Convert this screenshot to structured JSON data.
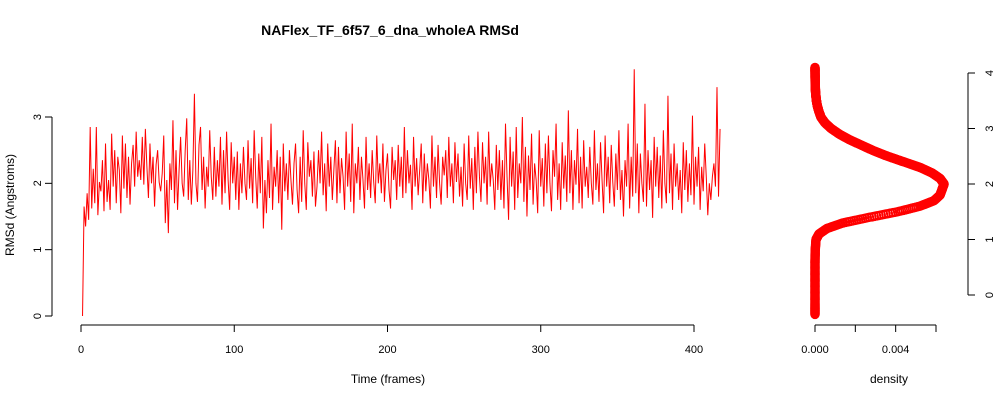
{
  "chart_data": [
    {
      "type": "line",
      "title": "NAFlex_TF_6f57_6_dna_wholeA RMSd",
      "xlabel": "Time (frames)",
      "ylabel": "RMSd (Angstroms)",
      "xlim": [
        0,
        400
      ],
      "ylim": [
        0,
        3.5
      ],
      "x_ticks": [
        0,
        100,
        200,
        300,
        400
      ],
      "y_ticks": [
        0,
        1,
        2,
        3
      ],
      "grid": false,
      "legend": "none",
      "line_color": "#ff0000",
      "series": [
        {
          "x_start": 1,
          "x_step": 1,
          "values": [
            0.0,
            1.65,
            1.35,
            1.85,
            1.45,
            2.85,
            1.62,
            2.22,
            1.7,
            2.85,
            1.52,
            2.02,
            1.88,
            2.35,
            1.58,
            2.6,
            1.72,
            2.05,
            1.6,
            2.75,
            1.95,
            2.5,
            1.7,
            2.4,
            2.2,
            1.55,
            2.72,
            1.92,
            2.6,
            1.78,
            2.4,
            1.68,
            2.3,
            2.58,
            1.95,
            2.78,
            2.1,
            2.35,
            2.05,
            2.7,
            1.98,
            2.82,
            2.25,
            1.78,
            2.6,
            2.0,
            2.4,
            1.65,
            2.28,
            2.5,
            2.02,
            1.88,
            2.15,
            2.72,
            1.4,
            2.05,
            1.25,
            2.3,
            1.9,
            2.95,
            1.7,
            2.5,
            1.6,
            2.2,
            2.7,
            2.0,
            1.8,
            2.5,
            2.98,
            1.75,
            2.35,
            1.68,
            2.2,
            3.35,
            2.0,
            1.72,
            2.58,
            2.85,
            1.9,
            2.4,
            1.62,
            2.25,
            1.95,
            2.8,
            2.1,
            1.75,
            2.55,
            1.8,
            2.35,
            1.95,
            2.7,
            1.68,
            2.5,
            1.85,
            2.78,
            2.05,
            1.6,
            2.62,
            2.0,
            2.4,
            1.75,
            2.48,
            1.6,
            2.3,
            1.85,
            2.55,
            2.0,
            1.75,
            2.65,
            1.92,
            2.38,
            1.7,
            2.8,
            2.1,
            1.62,
            2.45,
            1.85,
            2.7,
            1.32,
            2.05,
            1.55,
            2.35,
            1.78,
            2.9,
            1.6,
            2.25,
            1.95,
            2.5,
            1.7,
            2.4,
            1.3,
            2.6,
            1.88,
            2.3,
            1.75,
            2.5,
            2.05,
            1.68,
            2.3,
            2.6,
            1.9,
            1.55,
            2.4,
            1.72,
            2.8,
            2.0,
            1.6,
            2.62,
            2.1,
            2.35,
            1.8,
            2.48,
            1.65,
            1.95,
            2.5,
            2.0,
            2.78,
            1.82,
            2.3,
            1.58,
            2.6,
            1.95,
            2.4,
            1.75,
            2.2,
            2.65,
            1.7,
            2.55,
            1.85,
            2.38,
            2.1,
            1.6,
            2.78,
            1.95,
            2.45,
            1.72,
            2.9,
            1.55,
            2.3,
            2.0,
            2.55,
            1.75,
            2.4,
            2.05,
            1.62,
            2.7,
            1.9,
            2.3,
            1.78,
            2.5,
            2.02,
            1.7,
            2.72,
            2.0,
            2.3,
            1.85,
            2.6,
            1.72,
            2.2,
            2.45,
            1.9,
            1.62,
            2.55,
            2.05,
            2.35,
            1.75,
            2.58,
            1.95,
            2.4,
            1.78,
            2.85,
            1.85,
            2.5,
            2.0,
            2.28,
            1.6,
            2.7,
            1.95,
            2.38,
            1.82,
            2.2,
            2.6,
            1.7,
            2.45,
            1.88,
            2.3,
            2.05,
            1.62,
            2.72,
            1.95,
            2.4,
            1.78,
            2.58,
            2.0,
            1.68,
            2.4,
            2.12,
            2.5,
            1.78,
            2.7,
            1.95,
            2.3,
            1.7,
            2.62,
            2.02,
            2.45,
            1.8,
            2.25,
            1.65,
            2.6,
            2.0,
            1.75,
            2.72,
            1.92,
            2.38,
            1.6,
            2.55,
            1.85,
            2.78,
            2.1,
            1.72,
            2.62,
            2.0,
            2.4,
            1.68,
            2.78,
            1.95,
            2.3,
            2.05,
            1.6,
            2.58,
            1.9,
            2.5,
            1.75,
            2.35,
            1.62,
            2.9,
            2.1,
            1.45,
            2.7,
            1.95,
            2.48,
            1.6,
            2.85,
            1.78,
            2.3,
            2.0,
            3.0,
            1.72,
            2.55,
            1.5,
            2.42,
            1.9,
            2.75,
            1.68,
            2.3,
            2.05,
            1.55,
            2.8,
            1.95,
            2.38,
            1.65,
            2.6,
            1.85,
            2.72,
            2.0,
            1.58,
            2.5,
            2.1,
            2.9,
            1.75,
            2.3,
            1.6,
            2.62,
            1.92,
            2.42,
            1.72,
            3.1,
            1.85,
            2.5,
            1.6,
            2.35,
            1.98,
            2.82,
            1.7,
            2.4,
            1.62,
            2.65,
            1.95,
            2.25,
            1.78,
            2.55,
            2.0,
            1.68,
            2.8,
            1.9,
            2.3,
            1.72,
            2.62,
            2.05,
            1.55,
            2.72,
            1.95,
            2.4,
            1.7,
            2.58,
            2.02,
            1.65,
            2.45,
            1.9,
            2.8,
            1.75,
            2.2,
            1.5,
            2.35,
            1.95,
            2.9,
            1.62,
            2.4,
            1.8,
            3.72,
            1.85,
            2.6,
            1.55,
            2.45,
            2.0,
            1.72,
            3.2,
            1.65,
            2.5,
            1.9,
            2.35,
            1.48,
            2.7,
            1.95,
            2.55,
            1.78,
            2.42,
            1.62,
            2.8,
            2.0,
            1.7,
            3.32,
            1.85,
            2.45,
            1.6,
            2.6,
            1.95,
            2.3,
            1.75,
            2.2,
            1.55,
            2.62,
            1.9,
            2.5,
            1.72,
            2.3,
            1.82,
            3.02,
            1.68,
            2.4,
            1.95,
            2.55,
            1.6,
            2.25,
            1.88,
            2.6,
            2.1,
            1.52,
            2.0,
            1.75,
            2.1,
            2.3,
            1.95,
            3.45,
            1.8,
            2.82
          ]
        }
      ]
    },
    {
      "type": "line",
      "xlabel": "density",
      "ylabel": "",
      "xlim": [
        0,
        0.006
      ],
      "ylim": [
        -0.3,
        4.1
      ],
      "x_ticks": [
        0.0,
        0.002,
        0.004,
        0.006
      ],
      "x_tick_labels": [
        "0.000",
        "",
        "0.004",
        ""
      ],
      "y_ticks": [
        0,
        1,
        2,
        3,
        4
      ],
      "marker": "circle",
      "marker_color": "#ff0000",
      "series": [
        {
          "y": [
            -0.35,
            -0.2,
            0.0,
            0.2,
            0.4,
            0.6,
            0.8,
            1.0,
            1.1,
            1.2,
            1.3,
            1.4,
            1.5,
            1.6,
            1.7,
            1.8,
            1.9,
            2.0,
            2.1,
            2.2,
            2.3,
            2.4,
            2.5,
            2.6,
            2.7,
            2.8,
            2.9,
            3.0,
            3.1,
            3.2,
            3.3,
            3.4,
            3.5,
            3.6,
            3.7,
            3.8,
            3.9,
            4.0,
            4.1
          ],
          "density": [
            0.0,
            0.0,
            0.0,
            0.0,
            0.0,
            0.0,
            1e-05,
            5e-05,
            0.0002,
            0.0006,
            0.0014,
            0.0027,
            0.0041,
            0.0052,
            0.0059,
            0.0062,
            0.0063,
            0.0064,
            0.0062,
            0.0058,
            0.0052,
            0.0044,
            0.0036,
            0.0029,
            0.0023,
            0.0017,
            0.0012,
            0.0008,
            0.0005,
            0.0003,
            0.0002,
            0.00012,
            7e-05,
            4e-05,
            2e-05,
            1e-05,
            5e-06,
            2e-06,
            0.0
          ]
        }
      ]
    }
  ]
}
